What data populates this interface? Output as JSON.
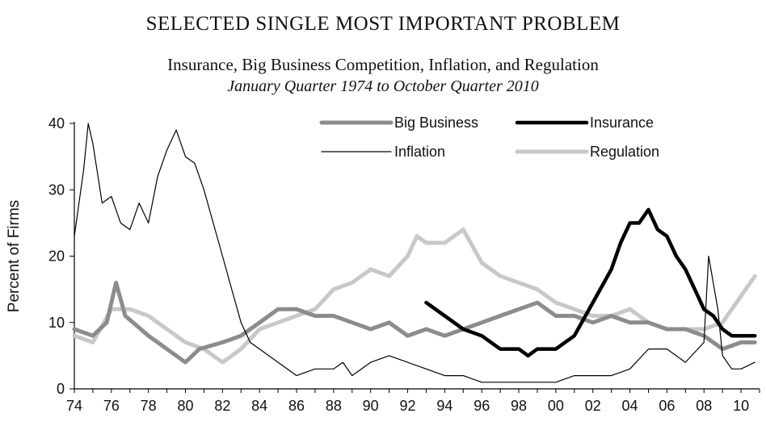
{
  "chart_data": {
    "type": "line",
    "title": "SELECTED SINGLE MOST IMPORTANT PROBLEM",
    "subtitle": "Insurance, Big Business Competition, Inflation, and Regulation",
    "period": "January Quarter 1974 to October Quarter 2010",
    "ylabel": "Percent of Firms",
    "xlabel": "",
    "xlim": [
      1974,
      2011
    ],
    "ylim": [
      0,
      40
    ],
    "yticks": [
      "0",
      "10",
      "20",
      "30",
      "40"
    ],
    "xtick_labels": [
      "74",
      "76",
      "78",
      "80",
      "82",
      "84",
      "86",
      "88",
      "90",
      "92",
      "94",
      "96",
      "98",
      "00",
      "02",
      "04",
      "06",
      "08",
      "10"
    ],
    "grid": false,
    "legend_position": "top-right",
    "series": [
      {
        "name": "Big Business",
        "color": "#8c8c8c",
        "points": [
          [
            1974,
            9
          ],
          [
            1975,
            8
          ],
          [
            1975.75,
            10
          ],
          [
            1976.25,
            16
          ],
          [
            1976.75,
            11
          ],
          [
            1978,
            8
          ],
          [
            1979,
            6
          ],
          [
            1980,
            4
          ],
          [
            1980.75,
            6
          ],
          [
            1982,
            7
          ],
          [
            1983,
            8
          ],
          [
            1984,
            10
          ],
          [
            1985,
            12
          ],
          [
            1986,
            12
          ],
          [
            1987,
            11
          ],
          [
            1988,
            11
          ],
          [
            1989,
            10
          ],
          [
            1990,
            9
          ],
          [
            1991,
            10
          ],
          [
            1992,
            8
          ],
          [
            1993,
            9
          ],
          [
            1994,
            8
          ],
          [
            1995,
            9
          ],
          [
            1996,
            10
          ],
          [
            1997,
            11
          ],
          [
            1998,
            12
          ],
          [
            1999,
            13
          ],
          [
            2000,
            11
          ],
          [
            2001,
            11
          ],
          [
            2002,
            10
          ],
          [
            2003,
            11
          ],
          [
            2004,
            10
          ],
          [
            2005,
            10
          ],
          [
            2006,
            9
          ],
          [
            2007,
            9
          ],
          [
            2008,
            8
          ],
          [
            2009,
            6
          ],
          [
            2010,
            7
          ],
          [
            2010.75,
            7
          ]
        ]
      },
      {
        "name": "Insurance",
        "color": "#000000",
        "points": [
          [
            1993,
            13
          ],
          [
            1994,
            11
          ],
          [
            1995,
            9
          ],
          [
            1996,
            8
          ],
          [
            1996.5,
            7
          ],
          [
            1997,
            6
          ],
          [
            1998,
            6
          ],
          [
            1998.5,
            5
          ],
          [
            1999,
            6
          ],
          [
            2000,
            6
          ],
          [
            2001,
            8
          ],
          [
            2002,
            13
          ],
          [
            2003,
            18
          ],
          [
            2003.5,
            22
          ],
          [
            2004,
            25
          ],
          [
            2004.5,
            25
          ],
          [
            2005,
            27
          ],
          [
            2005.5,
            24
          ],
          [
            2006,
            23
          ],
          [
            2006.5,
            20
          ],
          [
            2007,
            18
          ],
          [
            2007.5,
            15
          ],
          [
            2008,
            12
          ],
          [
            2008.5,
            11
          ],
          [
            2009,
            9
          ],
          [
            2009.5,
            8
          ],
          [
            2010,
            8
          ],
          [
            2010.75,
            8
          ]
        ]
      },
      {
        "name": "Inflation",
        "color": "#000000",
        "points": [
          [
            1974,
            23
          ],
          [
            1974.5,
            33
          ],
          [
            1974.75,
            40
          ],
          [
            1975,
            37
          ],
          [
            1975.5,
            28
          ],
          [
            1976,
            29
          ],
          [
            1976.5,
            25
          ],
          [
            1977,
            24
          ],
          [
            1977.5,
            28
          ],
          [
            1978,
            25
          ],
          [
            1978.5,
            32
          ],
          [
            1979,
            36
          ],
          [
            1979.5,
            39
          ],
          [
            1980,
            35
          ],
          [
            1980.5,
            34
          ],
          [
            1981,
            30
          ],
          [
            1981.5,
            25
          ],
          [
            1982,
            20
          ],
          [
            1982.5,
            15
          ],
          [
            1983,
            10
          ],
          [
            1983.5,
            7
          ],
          [
            1984,
            6
          ],
          [
            1985,
            4
          ],
          [
            1986,
            2
          ],
          [
            1987,
            3
          ],
          [
            1988,
            3
          ],
          [
            1988.5,
            4
          ],
          [
            1989,
            2
          ],
          [
            1990,
            4
          ],
          [
            1991,
            5
          ],
          [
            1992,
            4
          ],
          [
            1993,
            3
          ],
          [
            1994,
            2
          ],
          [
            1995,
            2
          ],
          [
            1996,
            1
          ],
          [
            1997,
            1
          ],
          [
            1998,
            1
          ],
          [
            1999,
            1
          ],
          [
            2000,
            1
          ],
          [
            2001,
            2
          ],
          [
            2002,
            2
          ],
          [
            2003,
            2
          ],
          [
            2004,
            3
          ],
          [
            2005,
            6
          ],
          [
            2006,
            6
          ],
          [
            2007,
            4
          ],
          [
            2008,
            7
          ],
          [
            2008.25,
            20
          ],
          [
            2008.75,
            12
          ],
          [
            2009,
            5
          ],
          [
            2009.5,
            3
          ],
          [
            2010,
            3
          ],
          [
            2010.75,
            4
          ]
        ]
      },
      {
        "name": "Regulation",
        "color": "#c8c8c8",
        "points": [
          [
            1974,
            8
          ],
          [
            1975,
            7
          ],
          [
            1976,
            12
          ],
          [
            1977,
            12
          ],
          [
            1978,
            11
          ],
          [
            1979,
            9
          ],
          [
            1980,
            7
          ],
          [
            1981,
            6
          ],
          [
            1982,
            4
          ],
          [
            1983,
            6
          ],
          [
            1984,
            9
          ],
          [
            1985,
            10
          ],
          [
            1986,
            11
          ],
          [
            1987,
            12
          ],
          [
            1988,
            15
          ],
          [
            1989,
            16
          ],
          [
            1990,
            18
          ],
          [
            1991,
            17
          ],
          [
            1992,
            20
          ],
          [
            1992.5,
            23
          ],
          [
            1993,
            22
          ],
          [
            1994,
            22
          ],
          [
            1995,
            24
          ],
          [
            1996,
            19
          ],
          [
            1997,
            17
          ],
          [
            1998,
            16
          ],
          [
            1999,
            15
          ],
          [
            2000,
            13
          ],
          [
            2001,
            12
          ],
          [
            2002,
            11
          ],
          [
            2003,
            11
          ],
          [
            2004,
            12
          ],
          [
            2005,
            10
          ],
          [
            2006,
            9
          ],
          [
            2007,
            9
          ],
          [
            2008,
            9
          ],
          [
            2009,
            10
          ],
          [
            2010,
            14
          ],
          [
            2010.75,
            17
          ]
        ]
      }
    ]
  }
}
